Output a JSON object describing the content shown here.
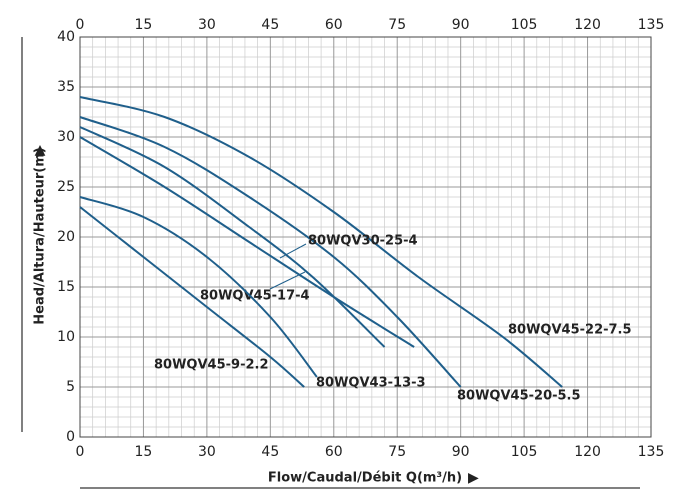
{
  "chart_data": {
    "type": "line",
    "x_label": "Flow/Caudal/Débit Q(m³/h)",
    "y_label": "Head/Altura/Hauteur(m)",
    "xlim": [
      0,
      135
    ],
    "xticks": [
      0,
      15,
      30,
      45,
      60,
      75,
      90,
      105,
      120,
      135
    ],
    "ylim": [
      0,
      40
    ],
    "yticks": [
      0,
      5,
      10,
      15,
      20,
      25,
      30,
      35,
      40
    ],
    "grid": true,
    "series": [
      {
        "name": "80WQV45-22-7.5",
        "color": "#1f5f8b",
        "x": [
          0,
          20,
          40,
          60,
          80,
          100,
          114
        ],
        "values": [
          34,
          32,
          28,
          22.5,
          16,
          10,
          5
        ]
      },
      {
        "name": "80WQV45-20-5.5",
        "color": "#1f5f8b",
        "x": [
          0,
          20,
          40,
          60,
          75,
          90
        ],
        "values": [
          32,
          29,
          24,
          18,
          12,
          5
        ]
      },
      {
        "name": "80WQV30-25-4",
        "color": "#1f5f8b",
        "x": [
          0,
          20,
          40,
          55,
          72
        ],
        "values": [
          31,
          27,
          21,
          16,
          9
        ]
      },
      {
        "name": "80WQV45-17-4",
        "color": "#1f5f8b",
        "x": [
          0,
          20,
          40,
          60,
          79
        ],
        "values": [
          30,
          25,
          19.5,
          14,
          9
        ]
      },
      {
        "name": "80WQV43-13-3",
        "color": "#1f5f8b",
        "x": [
          0,
          15,
          30,
          45,
          56
        ],
        "values": [
          24,
          22,
          18,
          12,
          6
        ]
      },
      {
        "name": "80WQV45-9-2.2",
        "color": "#1f5f8b",
        "x": [
          0,
          15,
          30,
          45,
          53
        ],
        "values": [
          23,
          18,
          13,
          8,
          5
        ]
      }
    ]
  }
}
